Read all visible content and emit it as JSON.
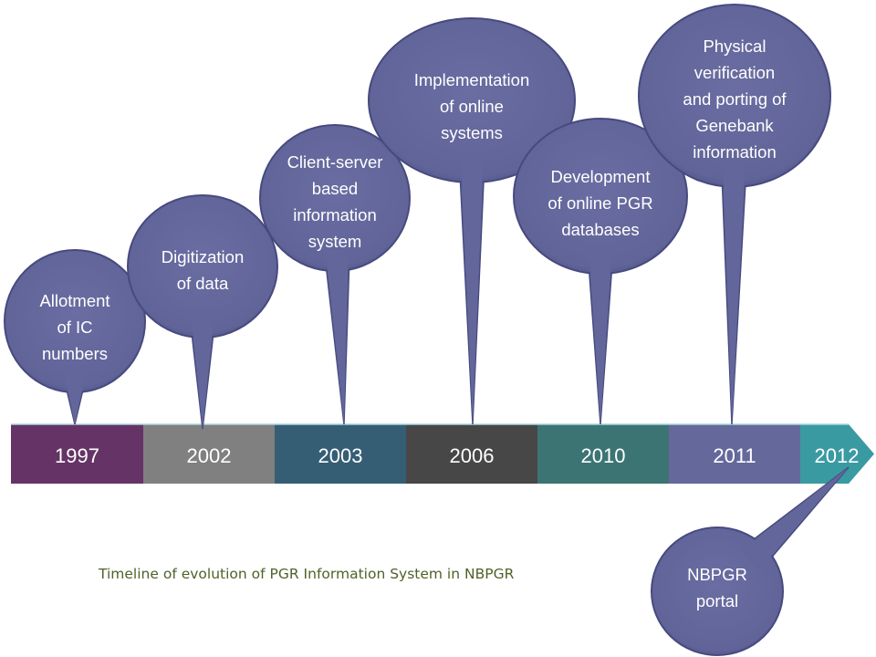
{
  "caption": "Timeline of evolution of PGR Information System in NBPGR",
  "timeline": [
    {
      "year": "1997",
      "color": "#663366",
      "event": [
        "Allotment",
        "of IC",
        "numbers"
      ]
    },
    {
      "year": "2002",
      "color": "#808080",
      "event": [
        "Digitization",
        "of data"
      ]
    },
    {
      "year": "2003",
      "color": "#355e75",
      "event": [
        "Client-server",
        "based",
        "information",
        "system"
      ]
    },
    {
      "year": "2006",
      "color": "#474747",
      "event": [
        "Implementation",
        "of online",
        "systems"
      ]
    },
    {
      "year": "2010",
      "color": "#3c7474",
      "event": [
        "Development",
        "of online PGR",
        "databases"
      ]
    },
    {
      "year": "2011",
      "color": "#65689b",
      "event": [
        "Physical",
        "verification",
        "and porting of",
        "Genebank",
        "information"
      ]
    },
    {
      "year": "2012",
      "color": "#3a9aa2",
      "event": [
        "NBPGR",
        "portal"
      ]
    }
  ],
  "bubble_color": "#63669a",
  "bubble_edge": "#474a7e"
}
